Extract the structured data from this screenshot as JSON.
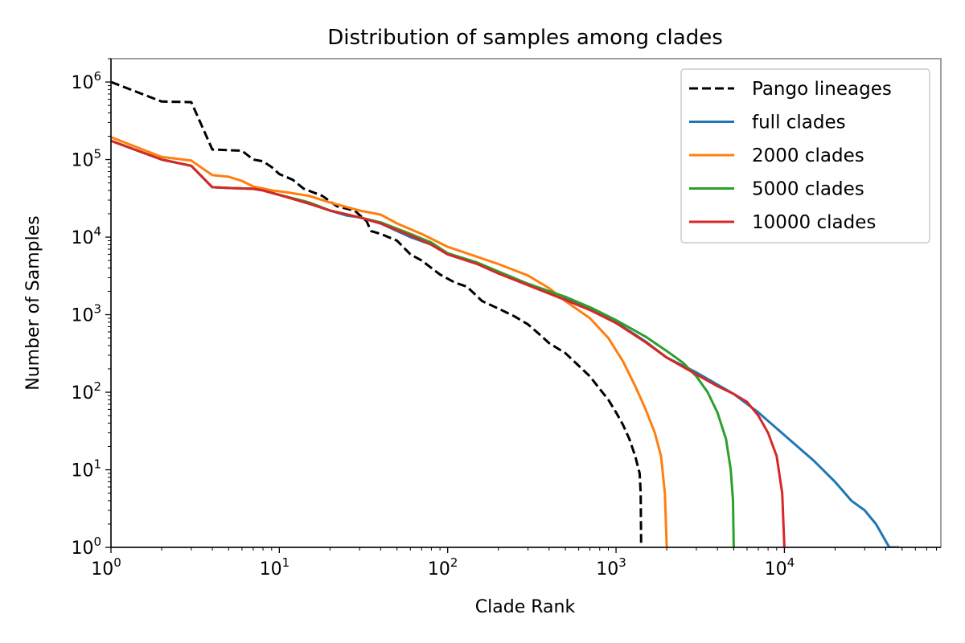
{
  "chart_data": {
    "type": "line",
    "title": "Distribution of samples among clades",
    "xlabel": "Clade Rank",
    "ylabel": "Number of Samples",
    "xscale": "log",
    "yscale": "log",
    "xlim": [
      1,
      85000
    ],
    "ylim": [
      1,
      2000000
    ],
    "x_ticks": [
      {
        "value": 1,
        "base": "10",
        "exp": "0"
      },
      {
        "value": 10,
        "base": "10",
        "exp": "1"
      },
      {
        "value": 100,
        "base": "10",
        "exp": "2"
      },
      {
        "value": 1000,
        "base": "10",
        "exp": "3"
      },
      {
        "value": 10000,
        "base": "10",
        "exp": "4"
      }
    ],
    "y_ticks": [
      {
        "value": 1,
        "base": "10",
        "exp": "0"
      },
      {
        "value": 10,
        "base": "10",
        "exp": "1"
      },
      {
        "value": 100,
        "base": "10",
        "exp": "2"
      },
      {
        "value": 1000,
        "base": "10",
        "exp": "3"
      },
      {
        "value": 10000,
        "base": "10",
        "exp": "4"
      },
      {
        "value": 100000,
        "base": "10",
        "exp": "5"
      },
      {
        "value": 1000000,
        "base": "10",
        "exp": "6"
      }
    ],
    "grid": false,
    "legend": "top-right",
    "series": [
      {
        "name": "Pango lineages",
        "color": "#000000",
        "dash": "dashed",
        "points": [
          [
            1,
            1000000
          ],
          [
            2,
            560000
          ],
          [
            3,
            550000
          ],
          [
            4,
            135000
          ],
          [
            6,
            130000
          ],
          [
            7,
            100000
          ],
          [
            8,
            95000
          ],
          [
            9,
            80000
          ],
          [
            10,
            65000
          ],
          [
            12,
            55000
          ],
          [
            14,
            42000
          ],
          [
            18,
            34000
          ],
          [
            22,
            25000
          ],
          [
            28,
            22000
          ],
          [
            33,
            16000
          ],
          [
            35,
            12000
          ],
          [
            40,
            11000
          ],
          [
            50,
            9000
          ],
          [
            60,
            6000
          ],
          [
            70,
            5000
          ],
          [
            90,
            3300
          ],
          [
            110,
            2600
          ],
          [
            130,
            2300
          ],
          [
            160,
            1500
          ],
          [
            200,
            1200
          ],
          [
            250,
            950
          ],
          [
            300,
            750
          ],
          [
            350,
            560
          ],
          [
            400,
            430
          ],
          [
            500,
            320
          ],
          [
            600,
            220
          ],
          [
            700,
            160
          ],
          [
            800,
            110
          ],
          [
            900,
            80
          ],
          [
            1000,
            55
          ],
          [
            1100,
            38
          ],
          [
            1200,
            25
          ],
          [
            1300,
            15
          ],
          [
            1380,
            9
          ],
          [
            1400,
            5
          ],
          [
            1410,
            1
          ]
        ]
      },
      {
        "name": "full clades",
        "color": "#1f77b4",
        "dash": "solid",
        "points": [
          [
            1,
            175000
          ],
          [
            2,
            100000
          ],
          [
            3,
            83000
          ],
          [
            4,
            44000
          ],
          [
            5,
            43000
          ],
          [
            7,
            42000
          ],
          [
            8,
            40000
          ],
          [
            10,
            35000
          ],
          [
            15,
            28000
          ],
          [
            20,
            22000
          ],
          [
            25,
            19000
          ],
          [
            30,
            18000
          ],
          [
            40,
            15000
          ],
          [
            50,
            12000
          ],
          [
            60,
            10000
          ],
          [
            80,
            8000
          ],
          [
            100,
            6000
          ],
          [
            150,
            4500
          ],
          [
            200,
            3500
          ],
          [
            300,
            2500
          ],
          [
            500,
            1600
          ],
          [
            700,
            1200
          ],
          [
            1000,
            800
          ],
          [
            1500,
            450
          ],
          [
            2000,
            280
          ],
          [
            3000,
            180
          ],
          [
            5000,
            95
          ],
          [
            7000,
            55
          ],
          [
            10000,
            28
          ],
          [
            15000,
            13
          ],
          [
            20000,
            7
          ],
          [
            25000,
            4
          ],
          [
            30000,
            3
          ],
          [
            35000,
            2
          ],
          [
            42000,
            1
          ],
          [
            48000,
            1
          ]
        ]
      },
      {
        "name": "2000 clades",
        "color": "#ff7f0e",
        "dash": "solid",
        "points": [
          [
            1,
            195000
          ],
          [
            2,
            108000
          ],
          [
            3,
            97000
          ],
          [
            4,
            63000
          ],
          [
            5,
            60000
          ],
          [
            6,
            53000
          ],
          [
            7,
            45000
          ],
          [
            9,
            40000
          ],
          [
            11,
            38000
          ],
          [
            15,
            34000
          ],
          [
            20,
            28000
          ],
          [
            30,
            22000
          ],
          [
            40,
            19500
          ],
          [
            50,
            15000
          ],
          [
            70,
            11000
          ],
          [
            100,
            7500
          ],
          [
            200,
            4500
          ],
          [
            300,
            3200
          ],
          [
            400,
            2200
          ],
          [
            500,
            1500
          ],
          [
            700,
            900
          ],
          [
            900,
            500
          ],
          [
            1100,
            250
          ],
          [
            1300,
            120
          ],
          [
            1500,
            60
          ],
          [
            1700,
            30
          ],
          [
            1850,
            15
          ],
          [
            1950,
            5
          ],
          [
            2000,
            1
          ]
        ]
      },
      {
        "name": "5000 clades",
        "color": "#2ca02c",
        "dash": "solid",
        "points": [
          [
            1,
            175000
          ],
          [
            2,
            100000
          ],
          [
            3,
            83000
          ],
          [
            4,
            44000
          ],
          [
            5,
            43000
          ],
          [
            7,
            42000
          ],
          [
            8,
            40000
          ],
          [
            10,
            35000
          ],
          [
            15,
            28000
          ],
          [
            20,
            22000
          ],
          [
            30,
            18000
          ],
          [
            40,
            15500
          ],
          [
            60,
            11000
          ],
          [
            80,
            8500
          ],
          [
            100,
            6200
          ],
          [
            150,
            4700
          ],
          [
            200,
            3600
          ],
          [
            300,
            2500
          ],
          [
            500,
            1700
          ],
          [
            700,
            1250
          ],
          [
            1000,
            850
          ],
          [
            1500,
            520
          ],
          [
            2000,
            340
          ],
          [
            2500,
            240
          ],
          [
            3000,
            160
          ],
          [
            3500,
            100
          ],
          [
            4000,
            55
          ],
          [
            4500,
            25
          ],
          [
            4800,
            10
          ],
          [
            4950,
            4
          ],
          [
            5000,
            1
          ]
        ]
      },
      {
        "name": "10000 clades",
        "color": "#d62728",
        "dash": "solid",
        "points": [
          [
            1,
            175000
          ],
          [
            2,
            100000
          ],
          [
            3,
            83000
          ],
          [
            4,
            44000
          ],
          [
            5,
            43000
          ],
          [
            7,
            42000
          ],
          [
            8,
            40000
          ],
          [
            10,
            35000
          ],
          [
            15,
            27000
          ],
          [
            20,
            22000
          ],
          [
            30,
            18000
          ],
          [
            40,
            15000
          ],
          [
            60,
            10500
          ],
          [
            80,
            8000
          ],
          [
            100,
            6000
          ],
          [
            150,
            4500
          ],
          [
            200,
            3400
          ],
          [
            300,
            2400
          ],
          [
            500,
            1550
          ],
          [
            700,
            1150
          ],
          [
            1000,
            780
          ],
          [
            1500,
            440
          ],
          [
            2000,
            280
          ],
          [
            3000,
            170
          ],
          [
            4000,
            120
          ],
          [
            5000,
            95
          ],
          [
            6000,
            75
          ],
          [
            7000,
            50
          ],
          [
            8000,
            30
          ],
          [
            9000,
            15
          ],
          [
            9700,
            5
          ],
          [
            10000,
            1
          ]
        ]
      }
    ]
  }
}
